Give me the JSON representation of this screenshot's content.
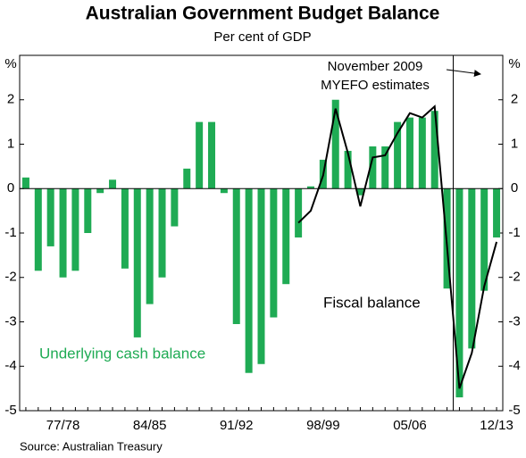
{
  "chart_data": {
    "type": "bar",
    "title": "Australian Government Budget Balance",
    "subtitle": "Per cent of GDP",
    "y_label": "%",
    "source": "Source: Australian Treasury",
    "annotation": [
      "November 2009",
      "MYEFO estimates"
    ],
    "categories": [
      null,
      null,
      null,
      "77/78",
      null,
      null,
      null,
      null,
      null,
      null,
      "84/85",
      null,
      null,
      null,
      null,
      null,
      null,
      "91/92",
      null,
      null,
      null,
      null,
      null,
      null,
      "98/99",
      null,
      null,
      null,
      null,
      null,
      null,
      "05/06",
      null,
      null,
      null,
      null,
      null,
      null,
      "12/13"
    ],
    "series": [
      {
        "name": "Underlying cash balance",
        "type": "bar",
        "color": "#1fab54",
        "values": [
          0.25,
          -1.85,
          -1.3,
          -2.0,
          -1.85,
          -1.0,
          -0.1,
          0.2,
          -1.8,
          -3.35,
          -2.6,
          -2.0,
          -0.85,
          0.45,
          1.5,
          1.5,
          -0.1,
          -3.05,
          -4.15,
          -3.95,
          -2.9,
          -2.15,
          -1.1,
          0.05,
          0.65,
          2.0,
          0.85,
          -0.15,
          0.95,
          0.95,
          1.5,
          1.6,
          1.6,
          1.75,
          -2.25,
          -4.7,
          -3.6,
          -2.3,
          -1.1
        ]
      },
      {
        "name": "Fiscal balance",
        "type": "line",
        "color": "#000000",
        "values": [
          null,
          null,
          null,
          null,
          null,
          null,
          null,
          null,
          null,
          null,
          null,
          null,
          null,
          null,
          null,
          null,
          null,
          null,
          null,
          null,
          null,
          null,
          -0.77,
          -0.5,
          0.3,
          1.8,
          0.8,
          -0.4,
          0.7,
          0.75,
          1.25,
          1.7,
          1.6,
          1.85,
          -1.3,
          -4.5,
          -3.7,
          -2.2,
          -1.2
        ]
      }
    ],
    "ylim": [
      -5,
      3
    ],
    "yticks": [
      -5,
      -4,
      -3,
      -2,
      -1,
      0,
      1,
      2
    ]
  }
}
